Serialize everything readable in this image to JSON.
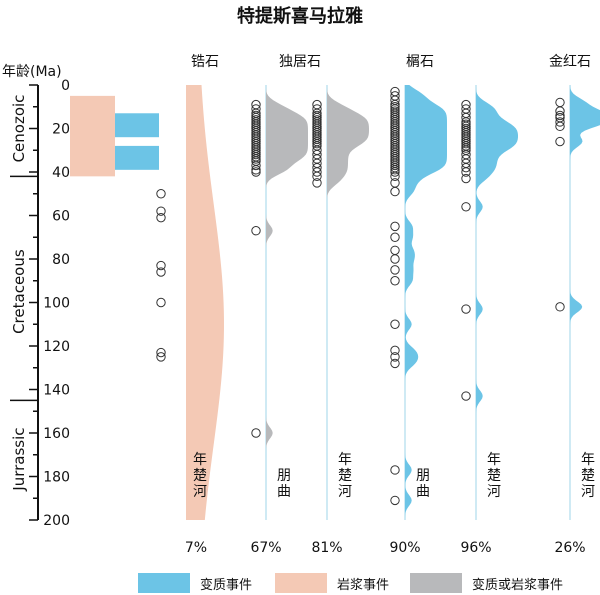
{
  "chart_data": {
    "type": "scatter",
    "title": "特提斯喜马拉雅",
    "y_axis": {
      "label": "年龄(Ma)",
      "range": [
        0,
        200
      ],
      "ticks": [
        0,
        20,
        40,
        60,
        80,
        100,
        120,
        140,
        160,
        180,
        200
      ],
      "period_labels": [
        "Cenozoic",
        "Cretaceous",
        "Jurrassic"
      ]
    },
    "events": {
      "magmatic": [
        {
          "from": 5,
          "to": 42
        }
      ],
      "metamorphic": [
        {
          "from": 13,
          "to": 24
        },
        {
          "from": 28,
          "to": 39
        }
      ]
    },
    "reference_ages": [
      50,
      58,
      61,
      83,
      86,
      100,
      123,
      125
    ],
    "columns": [
      {
        "mineral": "锆石",
        "location": "年楚河",
        "percent": "7%",
        "ages": [],
        "color": "#f4c9b5"
      },
      {
        "mineral": "独居石",
        "location": "朋曲",
        "percent": "67%",
        "color": "#b8b9bb",
        "ages": [
          9,
          11,
          13,
          14,
          15,
          16,
          17,
          18,
          19,
          20,
          21,
          22,
          23,
          24,
          25,
          26,
          27,
          28,
          29,
          30,
          31,
          32,
          33,
          34,
          35,
          37,
          39,
          40,
          67,
          160
        ]
      },
      {
        "mineral": "",
        "location": "年楚河",
        "percent": "81%",
        "color": "#b8b9bb",
        "ages": [
          9,
          11,
          13,
          14,
          15,
          16,
          17,
          18,
          19,
          20,
          21,
          22,
          23,
          24,
          25,
          26,
          27,
          28,
          30,
          32,
          34,
          36,
          38,
          40,
          42,
          45
        ]
      },
      {
        "mineral": "榍石",
        "location": "朋曲",
        "percent": "90%",
        "color": "#6cc4e6",
        "ages": [
          3,
          5,
          7,
          9,
          10,
          11,
          12,
          13,
          14,
          15,
          16,
          17,
          18,
          19,
          20,
          21,
          22,
          23,
          24,
          25,
          26,
          27,
          28,
          29,
          30,
          31,
          32,
          33,
          34,
          35,
          36,
          37,
          38,
          39,
          40,
          42,
          45,
          49,
          65,
          70,
          76,
          80,
          85,
          90,
          110,
          122,
          125,
          128,
          177,
          191
        ]
      },
      {
        "mineral": "",
        "location": "年楚河",
        "percent": "96%",
        "color": "#6cc4e6",
        "ages": [
          9,
          11,
          13,
          15,
          17,
          18,
          19,
          20,
          21,
          22,
          23,
          24,
          25,
          26,
          27,
          28,
          29,
          30,
          32,
          34,
          36,
          38,
          40,
          43,
          56,
          103,
          143
        ]
      },
      {
        "mineral": "金红石",
        "location": "年楚河",
        "percent": "26%",
        "color": "#6cc4e6",
        "ages": [
          8,
          12,
          14,
          15,
          17,
          19,
          26,
          102
        ]
      }
    ],
    "legend": [
      "变质事件",
      "岩浆事件",
      "变质或岩浆事件"
    ],
    "legend_colors": [
      "#6cc4e6",
      "#f4c9b5",
      "#b8b9bb"
    ]
  }
}
